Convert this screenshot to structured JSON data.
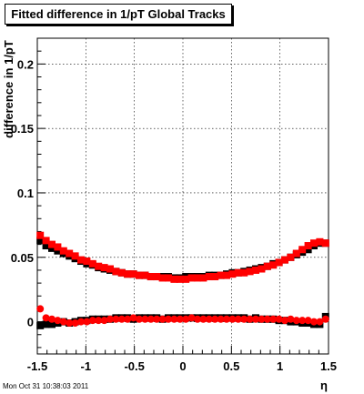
{
  "chart_data": {
    "type": "scatter",
    "title": "Fitted difference in 1/pT  Global Tracks",
    "xlabel": "η",
    "ylabel": "difference in 1/pT",
    "xlim": [
      -1.5,
      1.5
    ],
    "ylim": [
      -0.025,
      0.22
    ],
    "x_ticks": [
      -1.5,
      -1,
      -0.5,
      0,
      0.5,
      1,
      1.5
    ],
    "x_tick_labels": [
      "-1.5",
      "-1",
      "-0.5",
      "0",
      "0.5",
      "1",
      "1.5"
    ],
    "y_ticks": [
      0,
      0.05,
      0.1,
      0.15,
      0.2
    ],
    "y_tick_labels": [
      "0",
      "0.05",
      "0.1",
      "0.15",
      "0.2"
    ],
    "grid": true,
    "series": [
      {
        "color": "#000000",
        "marker": "square",
        "x": [
          -1.47,
          -1.41,
          -1.35,
          -1.29,
          -1.23,
          -1.17,
          -1.11,
          -1.05,
          -0.99,
          -0.93,
          -0.87,
          -0.81,
          -0.75,
          -0.69,
          -0.63,
          -0.57,
          -0.51,
          -0.45,
          -0.39,
          -0.33,
          -0.27,
          -0.21,
          -0.15,
          -0.09,
          -0.03,
          0.03,
          0.09,
          0.15,
          0.21,
          0.27,
          0.33,
          0.39,
          0.45,
          0.51,
          0.57,
          0.63,
          0.69,
          0.75,
          0.81,
          0.87,
          0.93,
          0.99,
          1.05,
          1.11,
          1.17,
          1.23,
          1.29,
          1.35,
          1.41,
          1.47
        ],
        "y": [
          0.063,
          0.059,
          0.057,
          0.055,
          0.053,
          0.051,
          0.049,
          0.047,
          0.045,
          0.044,
          0.042,
          0.041,
          0.04,
          0.039,
          0.038,
          0.037,
          0.037,
          0.036,
          0.036,
          0.035,
          0.035,
          0.035,
          0.035,
          0.034,
          0.034,
          0.035,
          0.035,
          0.035,
          0.035,
          0.036,
          0.036,
          0.036,
          0.037,
          0.038,
          0.038,
          0.039,
          0.04,
          0.041,
          0.042,
          0.043,
          0.045,
          0.046,
          0.048,
          0.05,
          0.052,
          0.054,
          0.056,
          0.059,
          0.061,
          0.061
        ]
      },
      {
        "color": "#000000",
        "marker": "square",
        "x": [
          -1.47,
          -1.41,
          -1.35,
          -1.29,
          -1.23,
          -1.17,
          -1.11,
          -1.05,
          -0.99,
          -0.93,
          -0.87,
          -0.81,
          -0.75,
          -0.69,
          -0.63,
          -0.57,
          -0.51,
          -0.45,
          -0.39,
          -0.33,
          -0.27,
          -0.21,
          -0.15,
          -0.09,
          -0.03,
          0.03,
          0.09,
          0.15,
          0.21,
          0.27,
          0.33,
          0.39,
          0.45,
          0.51,
          0.57,
          0.63,
          0.69,
          0.75,
          0.81,
          0.87,
          0.93,
          0.99,
          1.05,
          1.11,
          1.17,
          1.23,
          1.29,
          1.35,
          1.41,
          1.47
        ],
        "y": [
          -0.003,
          -0.002,
          -0.002,
          -0.001,
          0.0,
          -0.001,
          0.0,
          0.001,
          0.001,
          0.002,
          0.002,
          0.002,
          0.002,
          0.003,
          0.003,
          0.003,
          0.002,
          0.003,
          0.003,
          0.003,
          0.003,
          0.002,
          0.003,
          0.003,
          0.003,
          0.003,
          0.003,
          0.003,
          0.003,
          0.003,
          0.003,
          0.003,
          0.003,
          0.003,
          0.003,
          0.003,
          0.002,
          0.003,
          0.002,
          0.002,
          0.002,
          0.001,
          0.001,
          0.0,
          0.0,
          -0.001,
          -0.001,
          -0.002,
          -0.002,
          0.004
        ]
      },
      {
        "color": "#ff0000",
        "marker": "square",
        "x": [
          -1.47,
          -1.41,
          -1.35,
          -1.29,
          -1.23,
          -1.17,
          -1.11,
          -1.05,
          -0.99,
          -0.93,
          -0.87,
          -0.81,
          -0.75,
          -0.69,
          -0.63,
          -0.57,
          -0.51,
          -0.45,
          -0.39,
          -0.33,
          -0.27,
          -0.21,
          -0.15,
          -0.09,
          -0.03,
          0.03,
          0.09,
          0.15,
          0.21,
          0.27,
          0.33,
          0.39,
          0.45,
          0.51,
          0.57,
          0.63,
          0.69,
          0.75,
          0.81,
          0.87,
          0.93,
          0.99,
          1.05,
          1.11,
          1.17,
          1.23,
          1.29,
          1.35,
          1.41,
          1.47
        ],
        "y": [
          0.067,
          0.063,
          0.06,
          0.058,
          0.055,
          0.053,
          0.051,
          0.048,
          0.047,
          0.045,
          0.043,
          0.042,
          0.041,
          0.039,
          0.038,
          0.037,
          0.037,
          0.036,
          0.036,
          0.035,
          0.035,
          0.034,
          0.034,
          0.033,
          0.033,
          0.033,
          0.034,
          0.034,
          0.034,
          0.035,
          0.035,
          0.036,
          0.036,
          0.037,
          0.038,
          0.038,
          0.039,
          0.04,
          0.041,
          0.043,
          0.044,
          0.046,
          0.048,
          0.05,
          0.053,
          0.056,
          0.059,
          0.061,
          0.062,
          0.061
        ]
      },
      {
        "color": "#ff0000",
        "marker": "circle",
        "x": [
          -1.47,
          -1.41,
          -1.35,
          -1.29,
          -1.23,
          -1.17,
          -1.11,
          -1.05,
          -0.99,
          -0.93,
          -0.87,
          -0.81,
          -0.75,
          -0.69,
          -0.63,
          -0.57,
          -0.51,
          -0.45,
          -0.39,
          -0.33,
          -0.27,
          -0.21,
          -0.15,
          -0.09,
          -0.03,
          0.03,
          0.09,
          0.15,
          0.21,
          0.27,
          0.33,
          0.39,
          0.45,
          0.51,
          0.57,
          0.63,
          0.69,
          0.75,
          0.81,
          0.87,
          0.93,
          0.99,
          1.05,
          1.11,
          1.17,
          1.23,
          1.29,
          1.35,
          1.41,
          1.47
        ],
        "y": [
          0.01,
          0.003,
          0.002,
          0.001,
          0.0,
          -0.001,
          -0.001,
          0.0,
          0.0,
          0.001,
          0.001,
          0.001,
          0.002,
          0.002,
          0.002,
          0.002,
          0.003,
          0.002,
          0.002,
          0.002,
          0.002,
          0.002,
          0.002,
          0.002,
          0.002,
          0.002,
          0.003,
          0.002,
          0.002,
          0.002,
          0.002,
          0.002,
          0.002,
          0.002,
          0.002,
          0.002,
          0.002,
          0.002,
          0.002,
          0.002,
          0.002,
          0.002,
          0.001,
          0.002,
          0.001,
          0.001,
          0.001,
          0.0,
          0.0,
          0.002
        ]
      }
    ]
  },
  "footer": {
    "timestamp": "Mon Oct 31 10:38:03 2011"
  }
}
